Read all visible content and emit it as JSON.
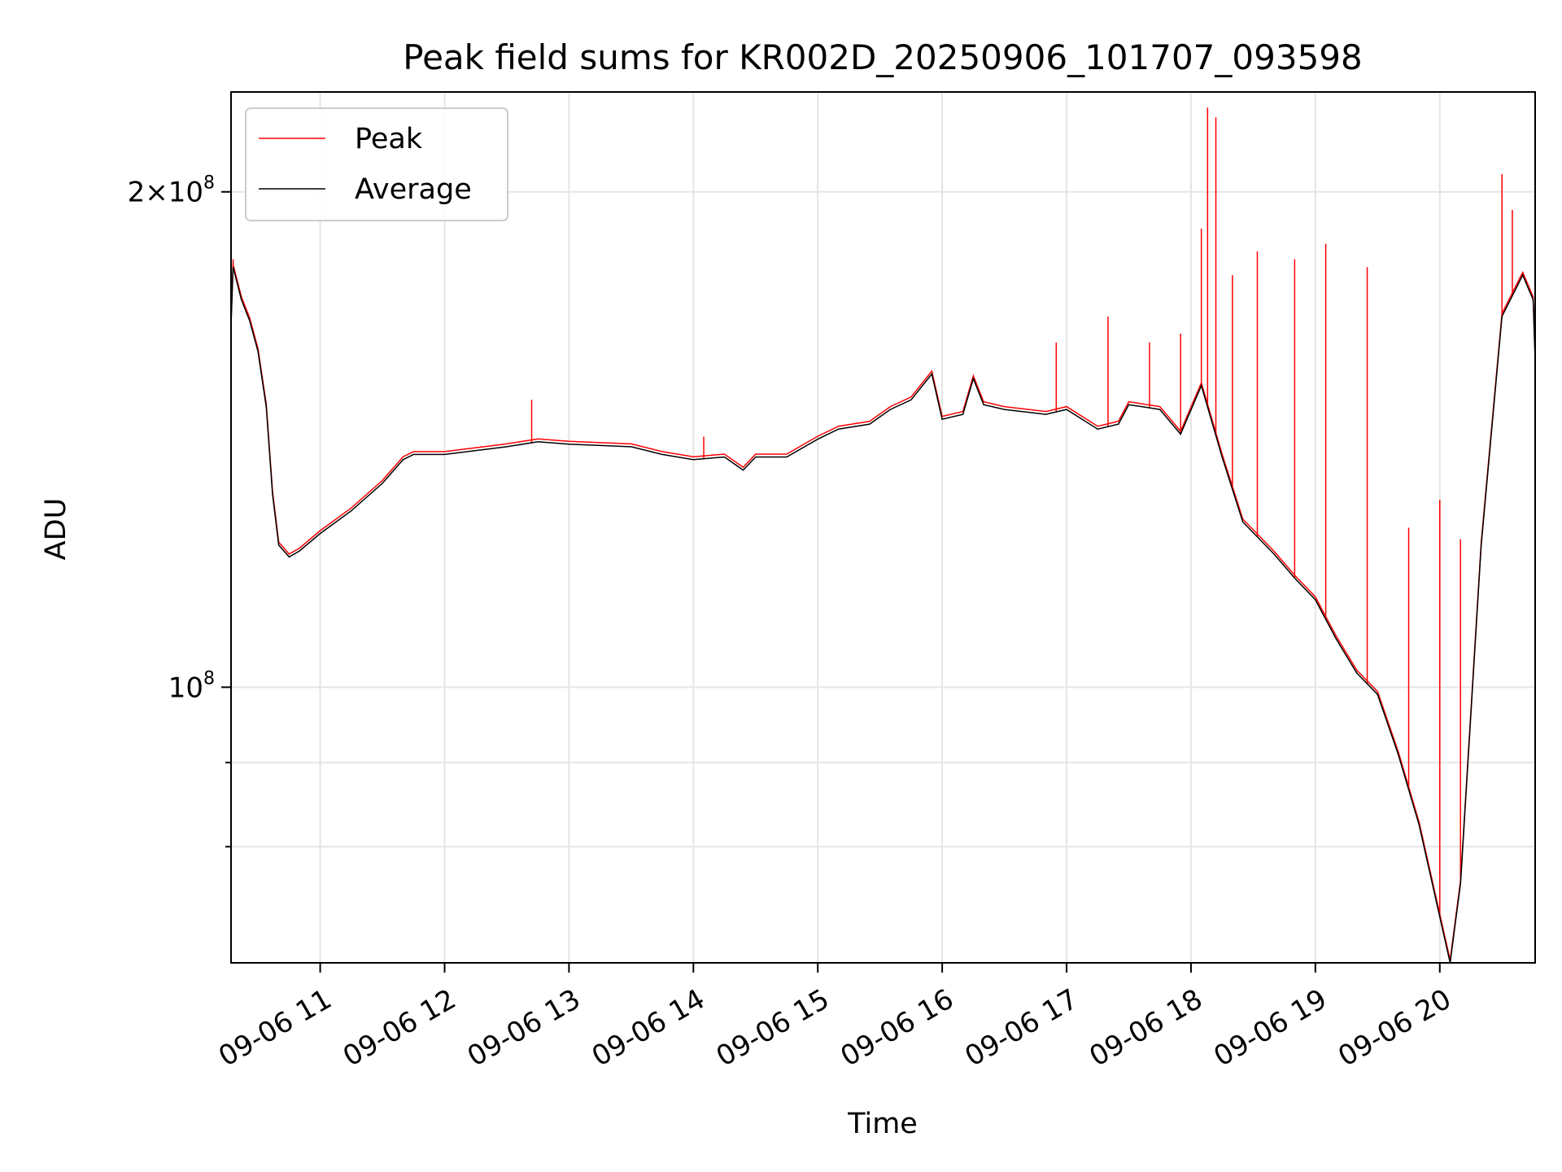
{
  "chart_data": {
    "type": "line",
    "title": "Peak field sums for KR002D_20250906_101707_093598",
    "xlabel": "Time",
    "ylabel": "ADU",
    "y_scale": "log",
    "ylim": [
      68000000,
      230000000
    ],
    "xlim": [
      "2025-09-06 10:17",
      "2025-09-06 20:46"
    ],
    "x_ticks": [
      {
        "label": "09-06 11",
        "value": "2025-09-06 11:00"
      },
      {
        "label": "09-06 12",
        "value": "2025-09-06 12:00"
      },
      {
        "label": "09-06 13",
        "value": "2025-09-06 13:00"
      },
      {
        "label": "09-06 14",
        "value": "2025-09-06 14:00"
      },
      {
        "label": "09-06 15",
        "value": "2025-09-06 15:00"
      },
      {
        "label": "09-06 16",
        "value": "2025-09-06 16:00"
      },
      {
        "label": "09-06 17",
        "value": "2025-09-06 17:00"
      },
      {
        "label": "09-06 18",
        "value": "2025-09-06 18:00"
      },
      {
        "label": "09-06 19",
        "value": "2025-09-06 19:00"
      },
      {
        "label": "09-06 20",
        "value": "2025-09-06 20:00"
      }
    ],
    "y_ticks": [
      {
        "mantissa": "2×10",
        "exp": "8",
        "value": 200000000
      },
      {
        "mantissa": "10",
        "exp": "8",
        "value": 100000000
      }
    ],
    "y_minor_gridlines": [
      80000000,
      90000000
    ],
    "grid": true,
    "legend": {
      "position": "top-left",
      "entries": [
        "Peak",
        "Average"
      ]
    },
    "series": [
      {
        "name": "Average",
        "color": "#000000",
        "points": [
          [
            "2025-09-06 10:17",
            166000000
          ],
          [
            "2025-09-06 10:18",
            180000000
          ],
          [
            "2025-09-06 10:22",
            172000000
          ],
          [
            "2025-09-06 10:26",
            167000000
          ],
          [
            "2025-09-06 10:30",
            160000000
          ],
          [
            "2025-09-06 10:34",
            148000000
          ],
          [
            "2025-09-06 10:37",
            131000000
          ],
          [
            "2025-09-06 10:40",
            122000000
          ],
          [
            "2025-09-06 10:45",
            120000000
          ],
          [
            "2025-09-06 10:50",
            121000000
          ],
          [
            "2025-09-06 11:00",
            124000000
          ],
          [
            "2025-09-06 11:15",
            128000000
          ],
          [
            "2025-09-06 11:30",
            133000000
          ],
          [
            "2025-09-06 11:40",
            137500000
          ],
          [
            "2025-09-06 11:45",
            138500000
          ],
          [
            "2025-09-06 12:00",
            138500000
          ],
          [
            "2025-09-06 12:30",
            140000000
          ],
          [
            "2025-09-06 12:45",
            141000000
          ],
          [
            "2025-09-06 13:00",
            140500000
          ],
          [
            "2025-09-06 13:30",
            140000000
          ],
          [
            "2025-09-06 13:45",
            138500000
          ],
          [
            "2025-09-06 14:00",
            137500000
          ],
          [
            "2025-09-06 14:15",
            138000000
          ],
          [
            "2025-09-06 14:24",
            135500000
          ],
          [
            "2025-09-06 14:30",
            138000000
          ],
          [
            "2025-09-06 14:45",
            138000000
          ],
          [
            "2025-09-06 15:00",
            141500000
          ],
          [
            "2025-09-06 15:10",
            143500000
          ],
          [
            "2025-09-06 15:25",
            144500000
          ],
          [
            "2025-09-06 15:35",
            147500000
          ],
          [
            "2025-09-06 15:45",
            149500000
          ],
          [
            "2025-09-06 15:55",
            155000000
          ],
          [
            "2025-09-06 16:00",
            145500000
          ],
          [
            "2025-09-06 16:10",
            146500000
          ],
          [
            "2025-09-06 16:15",
            154000000
          ],
          [
            "2025-09-06 16:20",
            148500000
          ],
          [
            "2025-09-06 16:30",
            147500000
          ],
          [
            "2025-09-06 16:50",
            146500000
          ],
          [
            "2025-09-06 17:00",
            147500000
          ],
          [
            "2025-09-06 17:15",
            143500000
          ],
          [
            "2025-09-06 17:25",
            144500000
          ],
          [
            "2025-09-06 17:30",
            148500000
          ],
          [
            "2025-09-06 17:45",
            147500000
          ],
          [
            "2025-09-06 17:55",
            142500000
          ],
          [
            "2025-09-06 18:05",
            152500000
          ],
          [
            "2025-09-06 18:15",
            138000000
          ],
          [
            "2025-09-06 18:25",
            126000000
          ],
          [
            "2025-09-06 18:40",
            120500000
          ],
          [
            "2025-09-06 18:50",
            116500000
          ],
          [
            "2025-09-06 19:00",
            113000000
          ],
          [
            "2025-09-06 19:10",
            107000000
          ],
          [
            "2025-09-06 19:20",
            102000000
          ],
          [
            "2025-09-06 19:30",
            99000000
          ],
          [
            "2025-09-06 19:40",
            91000000
          ],
          [
            "2025-09-06 19:50",
            82500000
          ],
          [
            "2025-09-06 20:00",
            72500000
          ],
          [
            "2025-09-06 20:05",
            68000000
          ],
          [
            "2025-09-06 20:10",
            76000000
          ],
          [
            "2025-09-06 20:20",
            122000000
          ],
          [
            "2025-09-06 20:30",
            168000000
          ],
          [
            "2025-09-06 20:40",
            178000000
          ],
          [
            "2025-09-06 20:45",
            172000000
          ],
          [
            "2025-09-06 20:46",
            158000000
          ]
        ]
      },
      {
        "name": "Peak",
        "color": "#ff0000",
        "spikes": [
          [
            "2025-09-06 10:18",
            182000000
          ],
          [
            "2025-09-06 12:42",
            149500000
          ],
          [
            "2025-09-06 14:05",
            142000000
          ],
          [
            "2025-09-06 16:55",
            162000000
          ],
          [
            "2025-09-06 17:20",
            168000000
          ],
          [
            "2025-09-06 17:40",
            162000000
          ],
          [
            "2025-09-06 17:55",
            164000000
          ],
          [
            "2025-09-06 18:05",
            190000000
          ],
          [
            "2025-09-06 18:08",
            225000000
          ],
          [
            "2025-09-06 18:12",
            222000000
          ],
          [
            "2025-09-06 18:20",
            178000000
          ],
          [
            "2025-09-06 18:32",
            184000000
          ],
          [
            "2025-09-06 18:50",
            182000000
          ],
          [
            "2025-09-06 19:05",
            186000000
          ],
          [
            "2025-09-06 19:25",
            180000000
          ],
          [
            "2025-09-06 19:45",
            125000000
          ],
          [
            "2025-09-06 20:00",
            130000000
          ],
          [
            "2025-09-06 20:10",
            123000000
          ],
          [
            "2025-09-06 20:30",
            205000000
          ],
          [
            "2025-09-06 20:35",
            195000000
          ]
        ]
      }
    ]
  }
}
